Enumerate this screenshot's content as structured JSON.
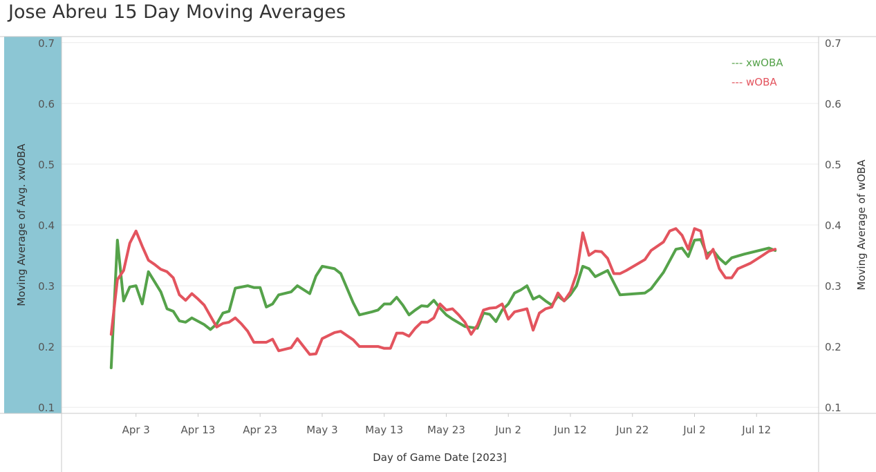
{
  "chart_data": {
    "type": "line",
    "title": "Jose Abreu 15 Day Moving Averages",
    "xlabel": "Day of Game Date [2023]",
    "ylabel_left": "Moving Average of Avg. xwOBA",
    "ylabel_right": "Moving Average of wOBA",
    "ylim": [
      0.09,
      0.71
    ],
    "y_ticks": [
      "0.7",
      "0.6",
      "0.5",
      "0.4",
      "0.3",
      "0.2",
      "0.1"
    ],
    "y_tick_values": [
      0.7,
      0.6,
      0.5,
      0.4,
      0.3,
      0.2,
      0.1
    ],
    "x_ticks": [
      {
        "label": "Apr 3",
        "date": "2023-04-03"
      },
      {
        "label": "Apr 13",
        "date": "2023-04-13"
      },
      {
        "label": "Apr 23",
        "date": "2023-04-23"
      },
      {
        "label": "May 3",
        "date": "2023-05-03"
      },
      {
        "label": "May 13",
        "date": "2023-05-13"
      },
      {
        "label": "May 23",
        "date": "2023-05-23"
      },
      {
        "label": "Jun 2",
        "date": "2023-06-02"
      },
      {
        "label": "Jun 12",
        "date": "2023-06-12"
      },
      {
        "label": "Jun 22",
        "date": "2023-06-22"
      },
      {
        "label": "Jul 2",
        "date": "2023-07-02"
      },
      {
        "label": "Jul 12",
        "date": "2023-07-12"
      }
    ],
    "xlim": [
      "2023-03-22",
      "2023-07-22"
    ],
    "grid": true,
    "legend_position": "top-right",
    "series": [
      {
        "name": "xwOBA",
        "legend_label": "--- xwOBA",
        "color": "#55a24a",
        "points": [
          [
            "2023-03-30",
            0.165
          ],
          [
            "2023-03-31",
            0.375
          ],
          [
            "2023-04-01",
            0.275
          ],
          [
            "2023-04-02",
            0.298
          ],
          [
            "2023-04-03",
            0.3
          ],
          [
            "2023-04-04",
            0.27
          ],
          [
            "2023-04-05",
            0.323
          ],
          [
            "2023-04-07",
            0.29
          ],
          [
            "2023-04-08",
            0.262
          ],
          [
            "2023-04-09",
            0.258
          ],
          [
            "2023-04-10",
            0.242
          ],
          [
            "2023-04-11",
            0.24
          ],
          [
            "2023-04-12",
            0.247
          ],
          [
            "2023-04-14",
            0.236
          ],
          [
            "2023-04-15",
            0.228
          ],
          [
            "2023-04-16",
            0.237
          ],
          [
            "2023-04-17",
            0.255
          ],
          [
            "2023-04-18",
            0.258
          ],
          [
            "2023-04-19",
            0.296
          ],
          [
            "2023-04-21",
            0.3
          ],
          [
            "2023-04-22",
            0.297
          ],
          [
            "2023-04-23",
            0.297
          ],
          [
            "2023-04-24",
            0.265
          ],
          [
            "2023-04-25",
            0.27
          ],
          [
            "2023-04-26",
            0.285
          ],
          [
            "2023-04-28",
            0.29
          ],
          [
            "2023-04-29",
            0.3
          ],
          [
            "2023-05-01",
            0.287
          ],
          [
            "2023-05-02",
            0.316
          ],
          [
            "2023-05-03",
            0.332
          ],
          [
            "2023-05-05",
            0.328
          ],
          [
            "2023-05-06",
            0.32
          ],
          [
            "2023-05-08",
            0.272
          ],
          [
            "2023-05-09",
            0.252
          ],
          [
            "2023-05-11",
            0.257
          ],
          [
            "2023-05-12",
            0.26
          ],
          [
            "2023-05-13",
            0.27
          ],
          [
            "2023-05-14",
            0.27
          ],
          [
            "2023-05-15",
            0.281
          ],
          [
            "2023-05-16",
            0.268
          ],
          [
            "2023-05-17",
            0.252
          ],
          [
            "2023-05-18",
            0.26
          ],
          [
            "2023-05-19",
            0.267
          ],
          [
            "2023-05-20",
            0.266
          ],
          [
            "2023-05-21",
            0.276
          ],
          [
            "2023-05-22",
            0.263
          ],
          [
            "2023-05-23",
            0.252
          ],
          [
            "2023-05-24",
            0.245
          ],
          [
            "2023-05-26",
            0.233
          ],
          [
            "2023-05-28",
            0.23
          ],
          [
            "2023-05-29",
            0.255
          ],
          [
            "2023-05-30",
            0.253
          ],
          [
            "2023-05-31",
            0.241
          ],
          [
            "2023-06-01",
            0.26
          ],
          [
            "2023-06-02",
            0.27
          ],
          [
            "2023-06-03",
            0.288
          ],
          [
            "2023-06-04",
            0.293
          ],
          [
            "2023-06-05",
            0.3
          ],
          [
            "2023-06-06",
            0.278
          ],
          [
            "2023-06-07",
            0.283
          ],
          [
            "2023-06-08",
            0.275
          ],
          [
            "2023-06-09",
            0.268
          ],
          [
            "2023-06-10",
            0.283
          ],
          [
            "2023-06-11",
            0.275
          ],
          [
            "2023-06-12",
            0.285
          ],
          [
            "2023-06-13",
            0.3
          ],
          [
            "2023-06-14",
            0.332
          ],
          [
            "2023-06-15",
            0.328
          ],
          [
            "2023-06-16",
            0.315
          ],
          [
            "2023-06-18",
            0.325
          ],
          [
            "2023-06-20",
            0.285
          ],
          [
            "2023-06-24",
            0.288
          ],
          [
            "2023-06-25",
            0.295
          ],
          [
            "2023-06-27",
            0.322
          ],
          [
            "2023-06-29",
            0.36
          ],
          [
            "2023-06-30",
            0.362
          ],
          [
            "2023-07-01",
            0.348
          ],
          [
            "2023-07-02",
            0.375
          ],
          [
            "2023-07-03",
            0.376
          ],
          [
            "2023-07-04",
            0.352
          ],
          [
            "2023-07-05",
            0.358
          ],
          [
            "2023-07-06",
            0.345
          ],
          [
            "2023-07-07",
            0.336
          ],
          [
            "2023-07-08",
            0.346
          ],
          [
            "2023-07-10",
            0.352
          ],
          [
            "2023-07-14",
            0.362
          ],
          [
            "2023-07-15",
            0.358
          ]
        ]
      },
      {
        "name": "wOBA",
        "legend_label": "--- wOBA",
        "color": "#e3545e",
        "points": [
          [
            "2023-03-30",
            0.22
          ],
          [
            "2023-03-31",
            0.31
          ],
          [
            "2023-04-01",
            0.325
          ],
          [
            "2023-04-02",
            0.37
          ],
          [
            "2023-04-03",
            0.39
          ],
          [
            "2023-04-04",
            0.365
          ],
          [
            "2023-04-05",
            0.342
          ],
          [
            "2023-04-06",
            0.335
          ],
          [
            "2023-04-07",
            0.327
          ],
          [
            "2023-04-08",
            0.323
          ],
          [
            "2023-04-09",
            0.313
          ],
          [
            "2023-04-10",
            0.285
          ],
          [
            "2023-04-11",
            0.276
          ],
          [
            "2023-04-12",
            0.287
          ],
          [
            "2023-04-13",
            0.278
          ],
          [
            "2023-04-14",
            0.268
          ],
          [
            "2023-04-15",
            0.25
          ],
          [
            "2023-04-16",
            0.232
          ],
          [
            "2023-04-17",
            0.238
          ],
          [
            "2023-04-18",
            0.24
          ],
          [
            "2023-04-19",
            0.247
          ],
          [
            "2023-04-20",
            0.237
          ],
          [
            "2023-04-21",
            0.225
          ],
          [
            "2023-04-22",
            0.207
          ],
          [
            "2023-04-23",
            0.207
          ],
          [
            "2023-04-24",
            0.207
          ],
          [
            "2023-04-25",
            0.212
          ],
          [
            "2023-04-26",
            0.193
          ],
          [
            "2023-04-28",
            0.198
          ],
          [
            "2023-04-29",
            0.213
          ],
          [
            "2023-04-30",
            0.2
          ],
          [
            "2023-05-01",
            0.187
          ],
          [
            "2023-05-02",
            0.188
          ],
          [
            "2023-05-03",
            0.213
          ],
          [
            "2023-05-05",
            0.223
          ],
          [
            "2023-05-06",
            0.225
          ],
          [
            "2023-05-08",
            0.211
          ],
          [
            "2023-05-09",
            0.2
          ],
          [
            "2023-05-11",
            0.2
          ],
          [
            "2023-05-12",
            0.2
          ],
          [
            "2023-05-13",
            0.197
          ],
          [
            "2023-05-14",
            0.197
          ],
          [
            "2023-05-15",
            0.222
          ],
          [
            "2023-05-16",
            0.222
          ],
          [
            "2023-05-17",
            0.217
          ],
          [
            "2023-05-18",
            0.23
          ],
          [
            "2023-05-19",
            0.24
          ],
          [
            "2023-05-20",
            0.24
          ],
          [
            "2023-05-21",
            0.247
          ],
          [
            "2023-05-22",
            0.27
          ],
          [
            "2023-05-23",
            0.26
          ],
          [
            "2023-05-24",
            0.262
          ],
          [
            "2023-05-25",
            0.252
          ],
          [
            "2023-05-26",
            0.24
          ],
          [
            "2023-05-27",
            0.22
          ],
          [
            "2023-05-28",
            0.235
          ],
          [
            "2023-05-29",
            0.26
          ],
          [
            "2023-05-30",
            0.263
          ],
          [
            "2023-05-31",
            0.264
          ],
          [
            "2023-06-01",
            0.27
          ],
          [
            "2023-06-02",
            0.245
          ],
          [
            "2023-06-03",
            0.257
          ],
          [
            "2023-06-05",
            0.262
          ],
          [
            "2023-06-06",
            0.227
          ],
          [
            "2023-06-07",
            0.255
          ],
          [
            "2023-06-08",
            0.262
          ],
          [
            "2023-06-09",
            0.265
          ],
          [
            "2023-06-10",
            0.288
          ],
          [
            "2023-06-11",
            0.275
          ],
          [
            "2023-06-12",
            0.29
          ],
          [
            "2023-06-13",
            0.32
          ],
          [
            "2023-06-14",
            0.387
          ],
          [
            "2023-06-15",
            0.35
          ],
          [
            "2023-06-16",
            0.357
          ],
          [
            "2023-06-17",
            0.356
          ],
          [
            "2023-06-18",
            0.345
          ],
          [
            "2023-06-19",
            0.32
          ],
          [
            "2023-06-20",
            0.32
          ],
          [
            "2023-06-21",
            0.325
          ],
          [
            "2023-06-23",
            0.337
          ],
          [
            "2023-06-24",
            0.343
          ],
          [
            "2023-06-25",
            0.358
          ],
          [
            "2023-06-27",
            0.372
          ],
          [
            "2023-06-28",
            0.39
          ],
          [
            "2023-06-29",
            0.394
          ],
          [
            "2023-06-30",
            0.383
          ],
          [
            "2023-07-01",
            0.36
          ],
          [
            "2023-07-02",
            0.394
          ],
          [
            "2023-07-03",
            0.39
          ],
          [
            "2023-07-04",
            0.345
          ],
          [
            "2023-07-05",
            0.36
          ],
          [
            "2023-07-06",
            0.328
          ],
          [
            "2023-07-07",
            0.313
          ],
          [
            "2023-07-08",
            0.313
          ],
          [
            "2023-07-09",
            0.328
          ],
          [
            "2023-07-11",
            0.337
          ],
          [
            "2023-07-13",
            0.35
          ],
          [
            "2023-07-14",
            0.357
          ],
          [
            "2023-07-15",
            0.36
          ]
        ]
      }
    ]
  },
  "colors": {
    "left_axis_band": "#8cc6d4",
    "gridline": "#ececec",
    "axis_line": "#c8c8c8"
  }
}
